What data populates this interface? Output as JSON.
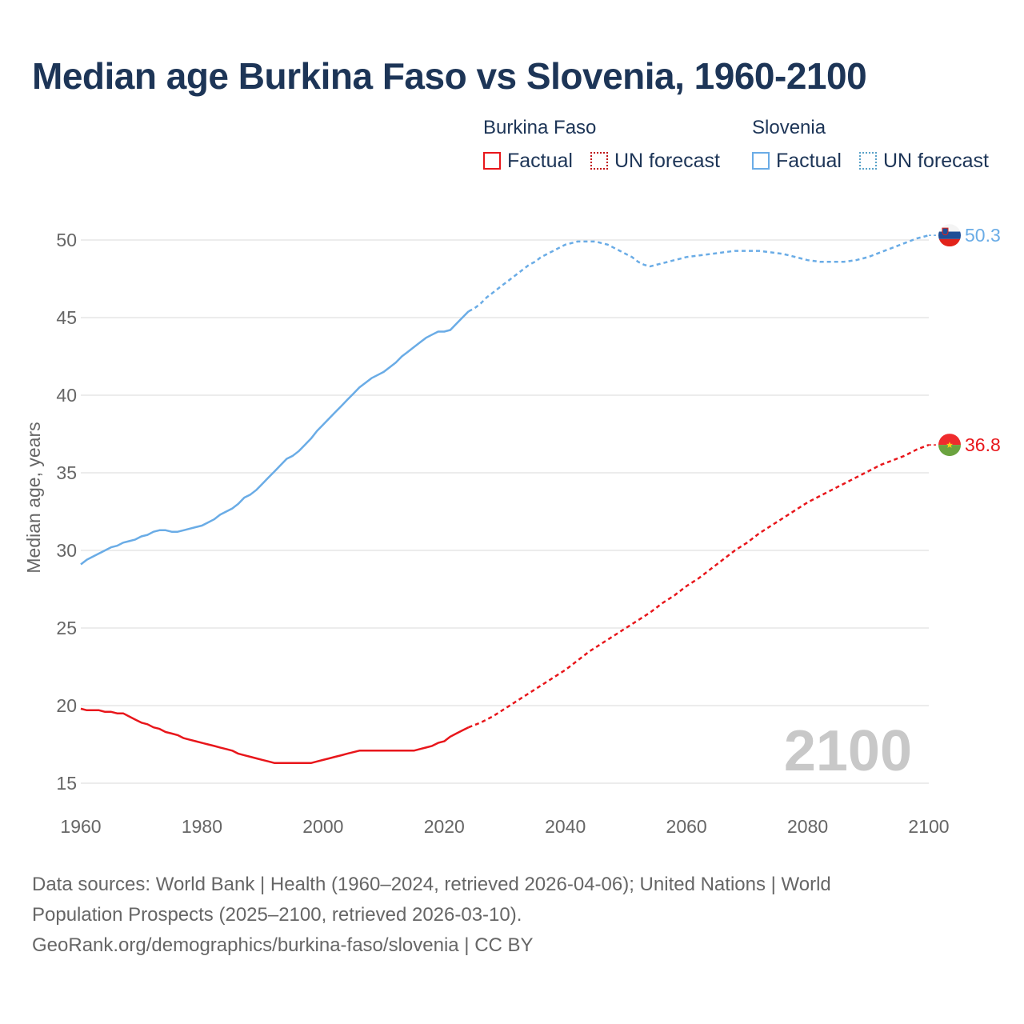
{
  "title": "Median age Burkina Faso vs Slovenia, 1960-2100",
  "legend": {
    "groups": [
      {
        "country": "Burkina Faso",
        "factual_label": "Factual",
        "forecast_label": "UN forecast"
      },
      {
        "country": "Slovenia",
        "factual_label": "Factual",
        "forecast_label": "UN forecast"
      }
    ]
  },
  "source": {
    "line1": "Data sources: World Bank | Health (1960–2024, retrieved 2026-04-06); United Nations | World",
    "line2": "Population Prospects (2025–2100, retrieved 2026-03-10).",
    "line3": "GeoRank.org/demographics/burkina-faso/slovenia | CC BY"
  },
  "colors": {
    "burkina": "#e8161b",
    "slovenia": "#6aace6",
    "title": "#1d3557",
    "watermark": "#c8c8c8"
  },
  "chart_data": {
    "type": "line",
    "title": "Median age Burkina Faso vs Slovenia, 1960-2100",
    "xlabel": "",
    "ylabel": "Median age, years",
    "xlim": [
      1960,
      2100
    ],
    "ylim": [
      15,
      52
    ],
    "x_ticks": [
      1960,
      1980,
      2000,
      2020,
      2040,
      2060,
      2080,
      2100
    ],
    "y_ticks": [
      15,
      20,
      25,
      30,
      35,
      40,
      45,
      50
    ],
    "grid": true,
    "year_watermark": "2100",
    "series": [
      {
        "name": "Slovenia",
        "color": "#6aace6",
        "end_label": "50.3",
        "factual": [
          [
            1960,
            29.1
          ],
          [
            1961,
            29.4
          ],
          [
            1962,
            29.6
          ],
          [
            1963,
            29.8
          ],
          [
            1964,
            30.0
          ],
          [
            1965,
            30.2
          ],
          [
            1966,
            30.3
          ],
          [
            1967,
            30.5
          ],
          [
            1968,
            30.6
          ],
          [
            1969,
            30.7
          ],
          [
            1970,
            30.9
          ],
          [
            1971,
            31.0
          ],
          [
            1972,
            31.2
          ],
          [
            1973,
            31.3
          ],
          [
            1974,
            31.3
          ],
          [
            1975,
            31.2
          ],
          [
            1976,
            31.2
          ],
          [
            1977,
            31.3
          ],
          [
            1978,
            31.4
          ],
          [
            1979,
            31.5
          ],
          [
            1980,
            31.6
          ],
          [
            1981,
            31.8
          ],
          [
            1982,
            32.0
          ],
          [
            1983,
            32.3
          ],
          [
            1984,
            32.5
          ],
          [
            1985,
            32.7
          ],
          [
            1986,
            33.0
          ],
          [
            1987,
            33.4
          ],
          [
            1988,
            33.6
          ],
          [
            1989,
            33.9
          ],
          [
            1990,
            34.3
          ],
          [
            1991,
            34.7
          ],
          [
            1992,
            35.1
          ],
          [
            1993,
            35.5
          ],
          [
            1994,
            35.9
          ],
          [
            1995,
            36.1
          ],
          [
            1996,
            36.4
          ],
          [
            1997,
            36.8
          ],
          [
            1998,
            37.2
          ],
          [
            1999,
            37.7
          ],
          [
            2000,
            38.1
          ],
          [
            2001,
            38.5
          ],
          [
            2002,
            38.9
          ],
          [
            2003,
            39.3
          ],
          [
            2004,
            39.7
          ],
          [
            2005,
            40.1
          ],
          [
            2006,
            40.5
          ],
          [
            2007,
            40.8
          ],
          [
            2008,
            41.1
          ],
          [
            2009,
            41.3
          ],
          [
            2010,
            41.5
          ],
          [
            2011,
            41.8
          ],
          [
            2012,
            42.1
          ],
          [
            2013,
            42.5
          ],
          [
            2014,
            42.8
          ],
          [
            2015,
            43.1
          ],
          [
            2016,
            43.4
          ],
          [
            2017,
            43.7
          ],
          [
            2018,
            43.9
          ],
          [
            2019,
            44.1
          ],
          [
            2020,
            44.1
          ],
          [
            2021,
            44.2
          ],
          [
            2022,
            44.6
          ],
          [
            2023,
            45.0
          ],
          [
            2024,
            45.4
          ]
        ],
        "forecast": [
          [
            2024,
            45.4
          ],
          [
            2025,
            45.6
          ],
          [
            2026,
            45.9
          ],
          [
            2027,
            46.3
          ],
          [
            2028,
            46.6
          ],
          [
            2029,
            46.9
          ],
          [
            2030,
            47.2
          ],
          [
            2031,
            47.5
          ],
          [
            2032,
            47.8
          ],
          [
            2033,
            48.1
          ],
          [
            2034,
            48.4
          ],
          [
            2035,
            48.6
          ],
          [
            2036,
            48.9
          ],
          [
            2037,
            49.1
          ],
          [
            2038,
            49.3
          ],
          [
            2039,
            49.5
          ],
          [
            2040,
            49.7
          ],
          [
            2041,
            49.8
          ],
          [
            2042,
            49.9
          ],
          [
            2043,
            49.9
          ],
          [
            2044,
            49.9
          ],
          [
            2045,
            49.9
          ],
          [
            2046,
            49.8
          ],
          [
            2047,
            49.7
          ],
          [
            2048,
            49.5
          ],
          [
            2049,
            49.3
          ],
          [
            2050,
            49.1
          ],
          [
            2051,
            48.9
          ],
          [
            2052,
            48.6
          ],
          [
            2053,
            48.4
          ],
          [
            2054,
            48.3
          ],
          [
            2055,
            48.4
          ],
          [
            2056,
            48.5
          ],
          [
            2057,
            48.6
          ],
          [
            2058,
            48.7
          ],
          [
            2059,
            48.8
          ],
          [
            2060,
            48.9
          ],
          [
            2062,
            49.0
          ],
          [
            2064,
            49.1
          ],
          [
            2066,
            49.2
          ],
          [
            2068,
            49.3
          ],
          [
            2070,
            49.3
          ],
          [
            2072,
            49.3
          ],
          [
            2074,
            49.2
          ],
          [
            2076,
            49.1
          ],
          [
            2078,
            48.9
          ],
          [
            2080,
            48.7
          ],
          [
            2082,
            48.6
          ],
          [
            2084,
            48.6
          ],
          [
            2086,
            48.6
          ],
          [
            2088,
            48.7
          ],
          [
            2090,
            48.9
          ],
          [
            2092,
            49.2
          ],
          [
            2094,
            49.5
          ],
          [
            2096,
            49.8
          ],
          [
            2098,
            50.1
          ],
          [
            2100,
            50.3
          ]
        ]
      },
      {
        "name": "Burkina Faso",
        "color": "#e8161b",
        "end_label": "36.8",
        "factual": [
          [
            1960,
            19.8
          ],
          [
            1961,
            19.7
          ],
          [
            1962,
            19.7
          ],
          [
            1963,
            19.7
          ],
          [
            1964,
            19.6
          ],
          [
            1965,
            19.6
          ],
          [
            1966,
            19.5
          ],
          [
            1967,
            19.5
          ],
          [
            1968,
            19.3
          ],
          [
            1969,
            19.1
          ],
          [
            1970,
            18.9
          ],
          [
            1971,
            18.8
          ],
          [
            1972,
            18.6
          ],
          [
            1973,
            18.5
          ],
          [
            1974,
            18.3
          ],
          [
            1975,
            18.2
          ],
          [
            1976,
            18.1
          ],
          [
            1977,
            17.9
          ],
          [
            1978,
            17.8
          ],
          [
            1979,
            17.7
          ],
          [
            1980,
            17.6
          ],
          [
            1981,
            17.5
          ],
          [
            1982,
            17.4
          ],
          [
            1983,
            17.3
          ],
          [
            1984,
            17.2
          ],
          [
            1985,
            17.1
          ],
          [
            1986,
            16.9
          ],
          [
            1987,
            16.8
          ],
          [
            1988,
            16.7
          ],
          [
            1989,
            16.6
          ],
          [
            1990,
            16.5
          ],
          [
            1991,
            16.4
          ],
          [
            1992,
            16.3
          ],
          [
            1993,
            16.3
          ],
          [
            1994,
            16.3
          ],
          [
            1995,
            16.3
          ],
          [
            1996,
            16.3
          ],
          [
            1997,
            16.3
          ],
          [
            1998,
            16.3
          ],
          [
            1999,
            16.4
          ],
          [
            2000,
            16.5
          ],
          [
            2001,
            16.6
          ],
          [
            2002,
            16.7
          ],
          [
            2003,
            16.8
          ],
          [
            2004,
            16.9
          ],
          [
            2005,
            17.0
          ],
          [
            2006,
            17.1
          ],
          [
            2007,
            17.1
          ],
          [
            2008,
            17.1
          ],
          [
            2009,
            17.1
          ],
          [
            2010,
            17.1
          ],
          [
            2011,
            17.1
          ],
          [
            2012,
            17.1
          ],
          [
            2013,
            17.1
          ],
          [
            2014,
            17.1
          ],
          [
            2015,
            17.1
          ],
          [
            2016,
            17.2
          ],
          [
            2017,
            17.3
          ],
          [
            2018,
            17.4
          ],
          [
            2019,
            17.6
          ],
          [
            2020,
            17.7
          ],
          [
            2021,
            18.0
          ],
          [
            2022,
            18.2
          ],
          [
            2023,
            18.4
          ],
          [
            2024,
            18.6
          ]
        ],
        "forecast": [
          [
            2024,
            18.6
          ],
          [
            2026,
            18.9
          ],
          [
            2028,
            19.3
          ],
          [
            2030,
            19.8
          ],
          [
            2032,
            20.3
          ],
          [
            2034,
            20.8
          ],
          [
            2036,
            21.3
          ],
          [
            2038,
            21.8
          ],
          [
            2040,
            22.3
          ],
          [
            2042,
            22.9
          ],
          [
            2044,
            23.5
          ],
          [
            2046,
            24.0
          ],
          [
            2048,
            24.5
          ],
          [
            2050,
            25.0
          ],
          [
            2052,
            25.5
          ],
          [
            2054,
            26.0
          ],
          [
            2056,
            26.6
          ],
          [
            2058,
            27.1
          ],
          [
            2060,
            27.7
          ],
          [
            2062,
            28.2
          ],
          [
            2064,
            28.8
          ],
          [
            2066,
            29.4
          ],
          [
            2068,
            30.0
          ],
          [
            2070,
            30.5
          ],
          [
            2072,
            31.1
          ],
          [
            2074,
            31.6
          ],
          [
            2076,
            32.1
          ],
          [
            2078,
            32.6
          ],
          [
            2080,
            33.1
          ],
          [
            2082,
            33.5
          ],
          [
            2084,
            33.9
          ],
          [
            2086,
            34.3
          ],
          [
            2088,
            34.7
          ],
          [
            2090,
            35.1
          ],
          [
            2092,
            35.5
          ],
          [
            2094,
            35.8
          ],
          [
            2096,
            36.1
          ],
          [
            2098,
            36.5
          ],
          [
            2100,
            36.8
          ]
        ]
      }
    ]
  }
}
